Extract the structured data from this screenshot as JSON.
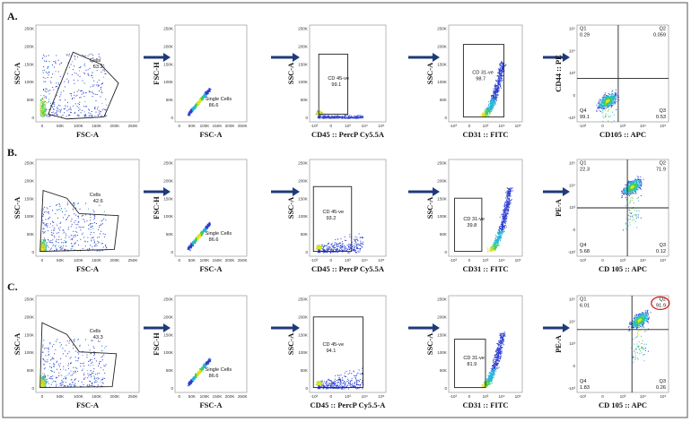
{
  "axes": {
    "linear": [
      "0",
      "50K",
      "100K",
      "150K",
      "200K",
      "250K"
    ],
    "log": [
      "-10³",
      "0",
      "10³",
      "10⁴",
      "10⁵"
    ]
  },
  "rows": [
    {
      "label": "A.",
      "panels": [
        {
          "x_label": "FSC-A",
          "y_label": "SSC-A",
          "gate": "Cells",
          "gate_value": "63.2"
        },
        {
          "x_label": "FSC-A",
          "y_label": "FSC-H",
          "gate": "Single Cells",
          "gate_value": "86.6"
        },
        {
          "x_label": "CD45 :: PercP Cy5.5A",
          "y_label": "SSC-A",
          "gate": "CD 45-ve",
          "gate_value": "99.1"
        },
        {
          "x_label": "CD31 :: FITC",
          "y_label": "SSC-A",
          "gate": "CD 31-ve",
          "gate_value": "98.7"
        },
        {
          "x_label": "CD105 :: APC",
          "y_label": "CD44 :: PE",
          "quadrants": [
            [
              "Q1",
              "0.29"
            ],
            [
              "Q2",
              "0.059"
            ],
            [
              "Q3",
              "0.53"
            ],
            [
              "Q4",
              "99.1"
            ]
          ]
        }
      ]
    },
    {
      "label": "B.",
      "panels": [
        {
          "x_label": "FSC-A",
          "y_label": "SSC-A",
          "gate": "Cells",
          "gate_value": "42.6"
        },
        {
          "x_label": "FSC-A",
          "y_label": "FSC-H",
          "gate": "Single Cells",
          "gate_value": "86.6"
        },
        {
          "x_label": "CD45 :: PercP Cy5.5A",
          "y_label": "SSC-A",
          "gate": "CD 45-ve",
          "gate_value": "93.2"
        },
        {
          "x_label": "CD31 :: FITC",
          "y_label": "SSC-A",
          "gate": "CD 31-ve",
          "gate_value": "39.8"
        },
        {
          "x_label": "CD 105 :: APC",
          "y_label": "PE-A",
          "quadrants": [
            [
              "Q1",
              "22.3"
            ],
            [
              "Q2",
              "71.9"
            ],
            [
              "Q3",
              "0.12"
            ],
            [
              "Q4",
              "5.68"
            ]
          ]
        }
      ]
    },
    {
      "label": "C.",
      "panels": [
        {
          "x_label": "FSC-A",
          "y_label": "SSC-A",
          "gate": "Cells",
          "gate_value": "43.3"
        },
        {
          "x_label": "FSC-A",
          "y_label": "FSC-H",
          "gate": "Single Cells",
          "gate_value": "86.6"
        },
        {
          "x_label": "CD45 :: PercP Cy5.5-A",
          "y_label": "SSC-A",
          "gate": "CD 45-ve",
          "gate_value": "94.1"
        },
        {
          "x_label": "CD31 :: FITC",
          "y_label": "SSC-A",
          "gate": "CD 31-ve",
          "gate_value": "81.9"
        },
        {
          "x_label": "CD 105 :: APC",
          "y_label": "PE-A",
          "quadrants": [
            [
              "Q1",
              "6.01"
            ],
            [
              "Q2",
              "91.9"
            ],
            [
              "Q3",
              "0.26"
            ],
            [
              "Q4",
              "1.83"
            ]
          ]
        }
      ]
    }
  ]
}
